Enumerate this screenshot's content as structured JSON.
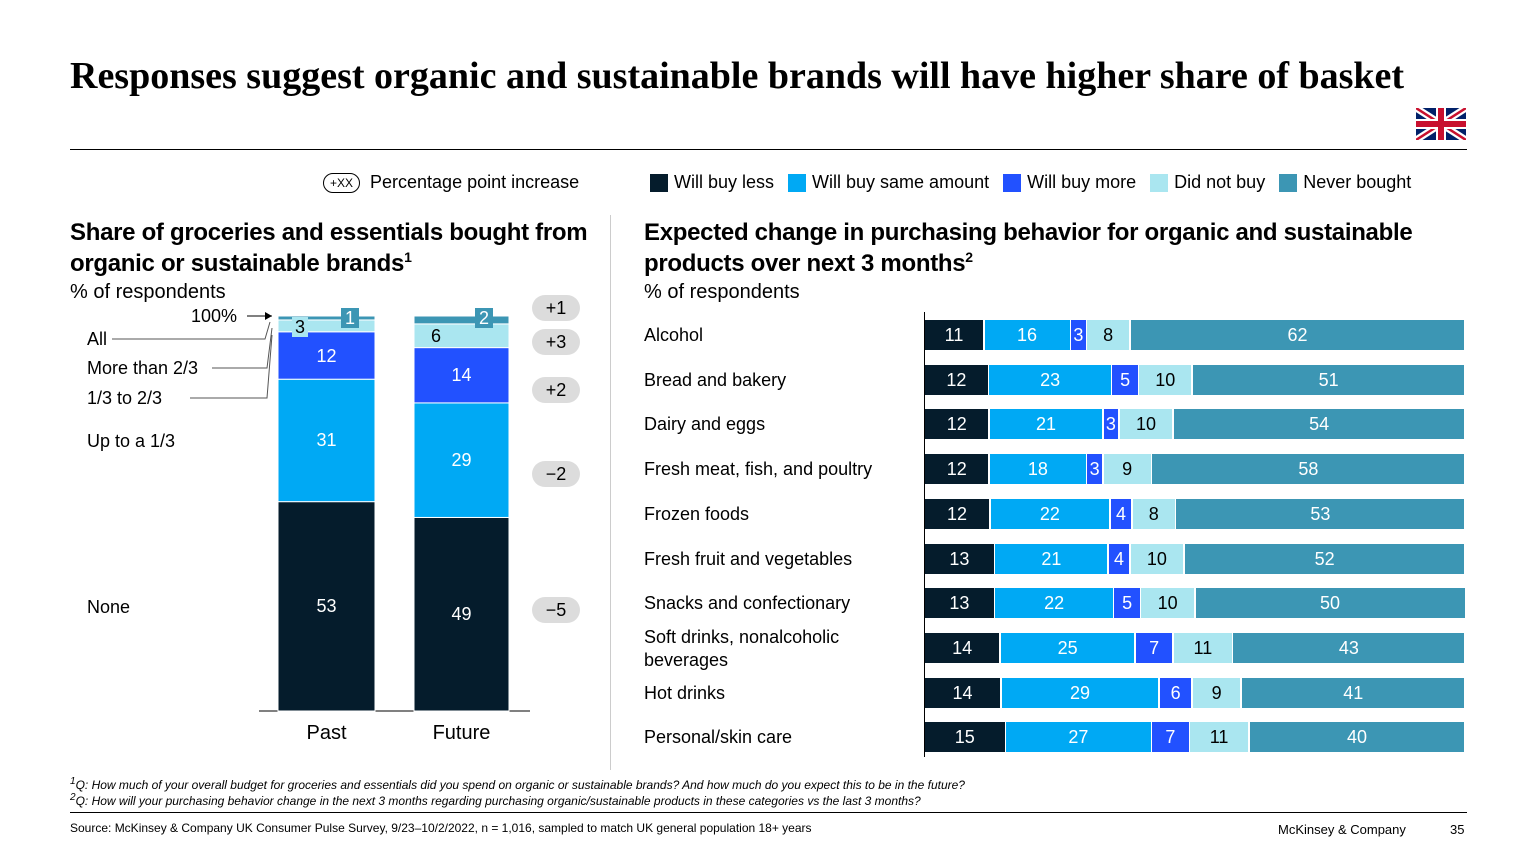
{
  "title": "Responses suggest organic and sustainable brands will have higher share of basket",
  "flag_icon": "uk-flag-icon",
  "pp_legend": {
    "badge": "+XX",
    "label": "Percentage point increase"
  },
  "colors": {
    "dark": "#051c2c",
    "bright": "#00a9f4",
    "blue": "#2251ff",
    "light": "#aae6f0",
    "teal": "#3c96b4"
  },
  "legend": [
    {
      "label": "Will buy less",
      "color": "#051c2c"
    },
    {
      "label": "Will buy same amount",
      "color": "#00a9f4"
    },
    {
      "label": "Will buy more",
      "color": "#2251ff"
    },
    {
      "label": "Did not buy",
      "color": "#aae6f0"
    },
    {
      "label": "Never bought",
      "color": "#3c96b4"
    }
  ],
  "chart_data": [
    {
      "type": "bar",
      "stacked": true,
      "title": "Share of groceries and essentials bought from organic or sustainable brands",
      "title_sup": "1",
      "subtitle": "% of respondents",
      "top_marker": "100%",
      "categories": [
        "Past",
        "Future"
      ],
      "series": [
        {
          "name": "None",
          "color": "#051c2c",
          "values": [
            53,
            49
          ]
        },
        {
          "name": "Up to a 1/3",
          "color": "#00a9f4",
          "values": [
            31,
            29
          ]
        },
        {
          "name": "1/3 to 2/3",
          "color": "#2251ff",
          "values": [
            12,
            14
          ]
        },
        {
          "name": "More than 2/3",
          "color": "#aae6f0",
          "values": [
            3,
            6
          ]
        },
        {
          "name": "All",
          "color": "#3c96b4",
          "values": [
            1,
            2
          ]
        }
      ],
      "changes": [
        "+1",
        "+3",
        "+2",
        "−2",
        "−5"
      ]
    },
    {
      "type": "bar",
      "stacked": true,
      "orientation": "horizontal",
      "title": "Expected change in purchasing behavior for organic and sustainable products over next 3 months",
      "title_sup": "2",
      "subtitle": "% of respondents",
      "categories": [
        "Alcohol",
        "Bread and bakery",
        "Dairy and eggs",
        "Fresh meat, fish, and poultry",
        "Frozen foods",
        "Fresh fruit and vegetables",
        "Snacks and confectionary",
        "Soft drinks, nonalcoholic beverages",
        "Hot drinks",
        "Personal/skin care"
      ],
      "series": [
        {
          "name": "Will buy less",
          "values": [
            11,
            12,
            12,
            12,
            12,
            13,
            13,
            14,
            14,
            15
          ]
        },
        {
          "name": "Will buy same amount",
          "values": [
            16,
            23,
            21,
            18,
            22,
            21,
            22,
            25,
            29,
            27
          ]
        },
        {
          "name": "Will buy more",
          "values": [
            3,
            5,
            3,
            3,
            4,
            4,
            5,
            7,
            6,
            7
          ]
        },
        {
          "name": "Did not buy",
          "values": [
            8,
            10,
            10,
            9,
            8,
            10,
            10,
            11,
            9,
            11
          ]
        },
        {
          "name": "Never bought",
          "values": [
            62,
            51,
            54,
            58,
            53,
            52,
            50,
            43,
            41,
            40
          ]
        }
      ]
    }
  ],
  "footnotes": [
    {
      "sup": "1",
      "text": "Q: How much of your overall budget for groceries and essentials did you spend on organic or sustainable brands? And how much do you expect this to be in the future?"
    },
    {
      "sup": "2",
      "text": "Q: How will your purchasing behavior change in the next 3 months regarding purchasing organic/sustainable products in these categories vs the last 3 months?"
    }
  ],
  "source": "Source: McKinsey & Company UK Consumer Pulse Survey, 9/23–10/2/2022, n = 1,016, sampled to match UK general population 18+ years",
  "brand": "McKinsey & Company",
  "page": "35"
}
